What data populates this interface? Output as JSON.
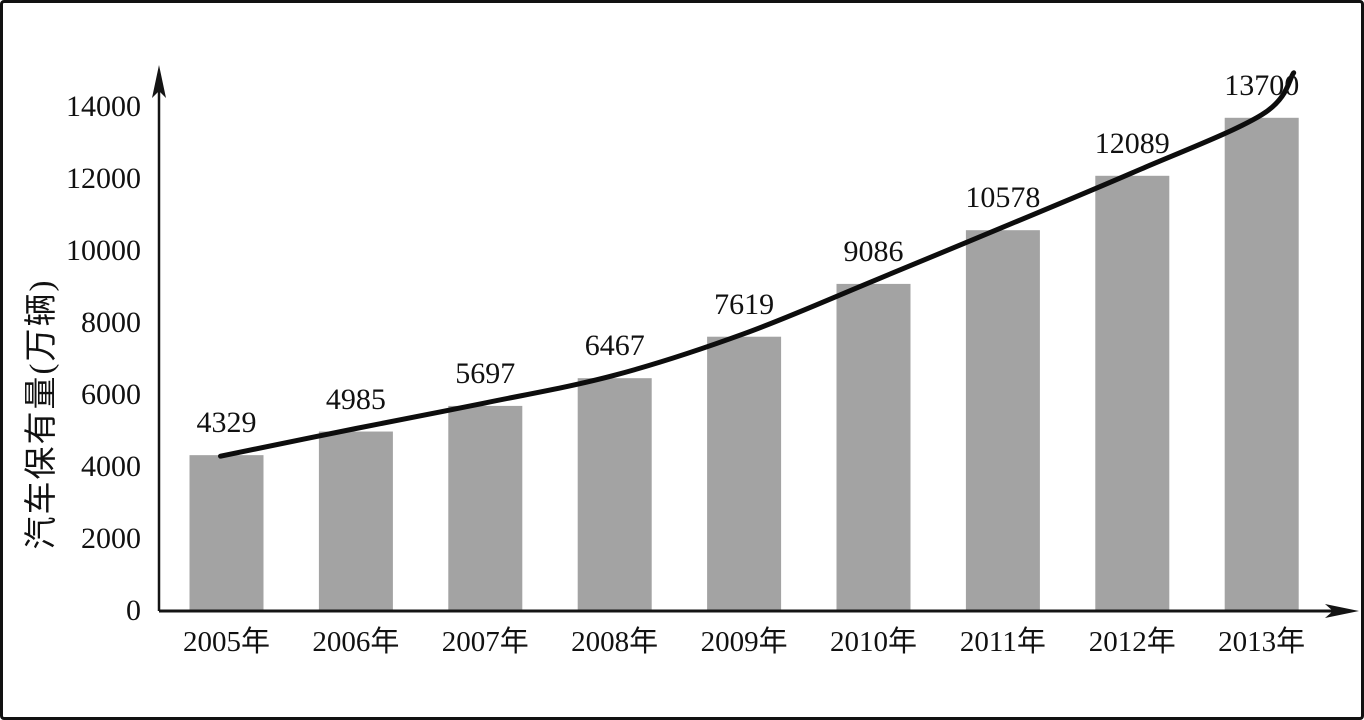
{
  "chart_data": {
    "type": "bar",
    "title": "",
    "xlabel": "",
    "ylabel": "汽车保有量(万辆)",
    "categories": [
      "2005年",
      "2006年",
      "2007年",
      "2008年",
      "2009年",
      "2010年",
      "2011年",
      "2012年",
      "2013年"
    ],
    "values": [
      4329,
      4985,
      5697,
      6467,
      7619,
      9086,
      10578,
      12089,
      13700
    ],
    "value_labels": [
      "4329",
      "4985",
      "5697",
      "6467",
      "7619",
      "9086",
      "10578",
      "12089",
      "13700"
    ],
    "y_ticks": [
      0,
      2000,
      4000,
      6000,
      8000,
      10000,
      12000,
      14000
    ],
    "y_tick_labels": [
      "0",
      "2000",
      "4000",
      "6000",
      "8000",
      "10000",
      "12000",
      "14000"
    ],
    "ylim": [
      0,
      15200
    ],
    "grid": false,
    "legend": null,
    "trend_curve": true,
    "bar_color": "#a3a3a3",
    "curve_color": "#0d0d0d",
    "axis_color": "#141414",
    "text_color": "#111111",
    "background_color": "#ffffff"
  }
}
